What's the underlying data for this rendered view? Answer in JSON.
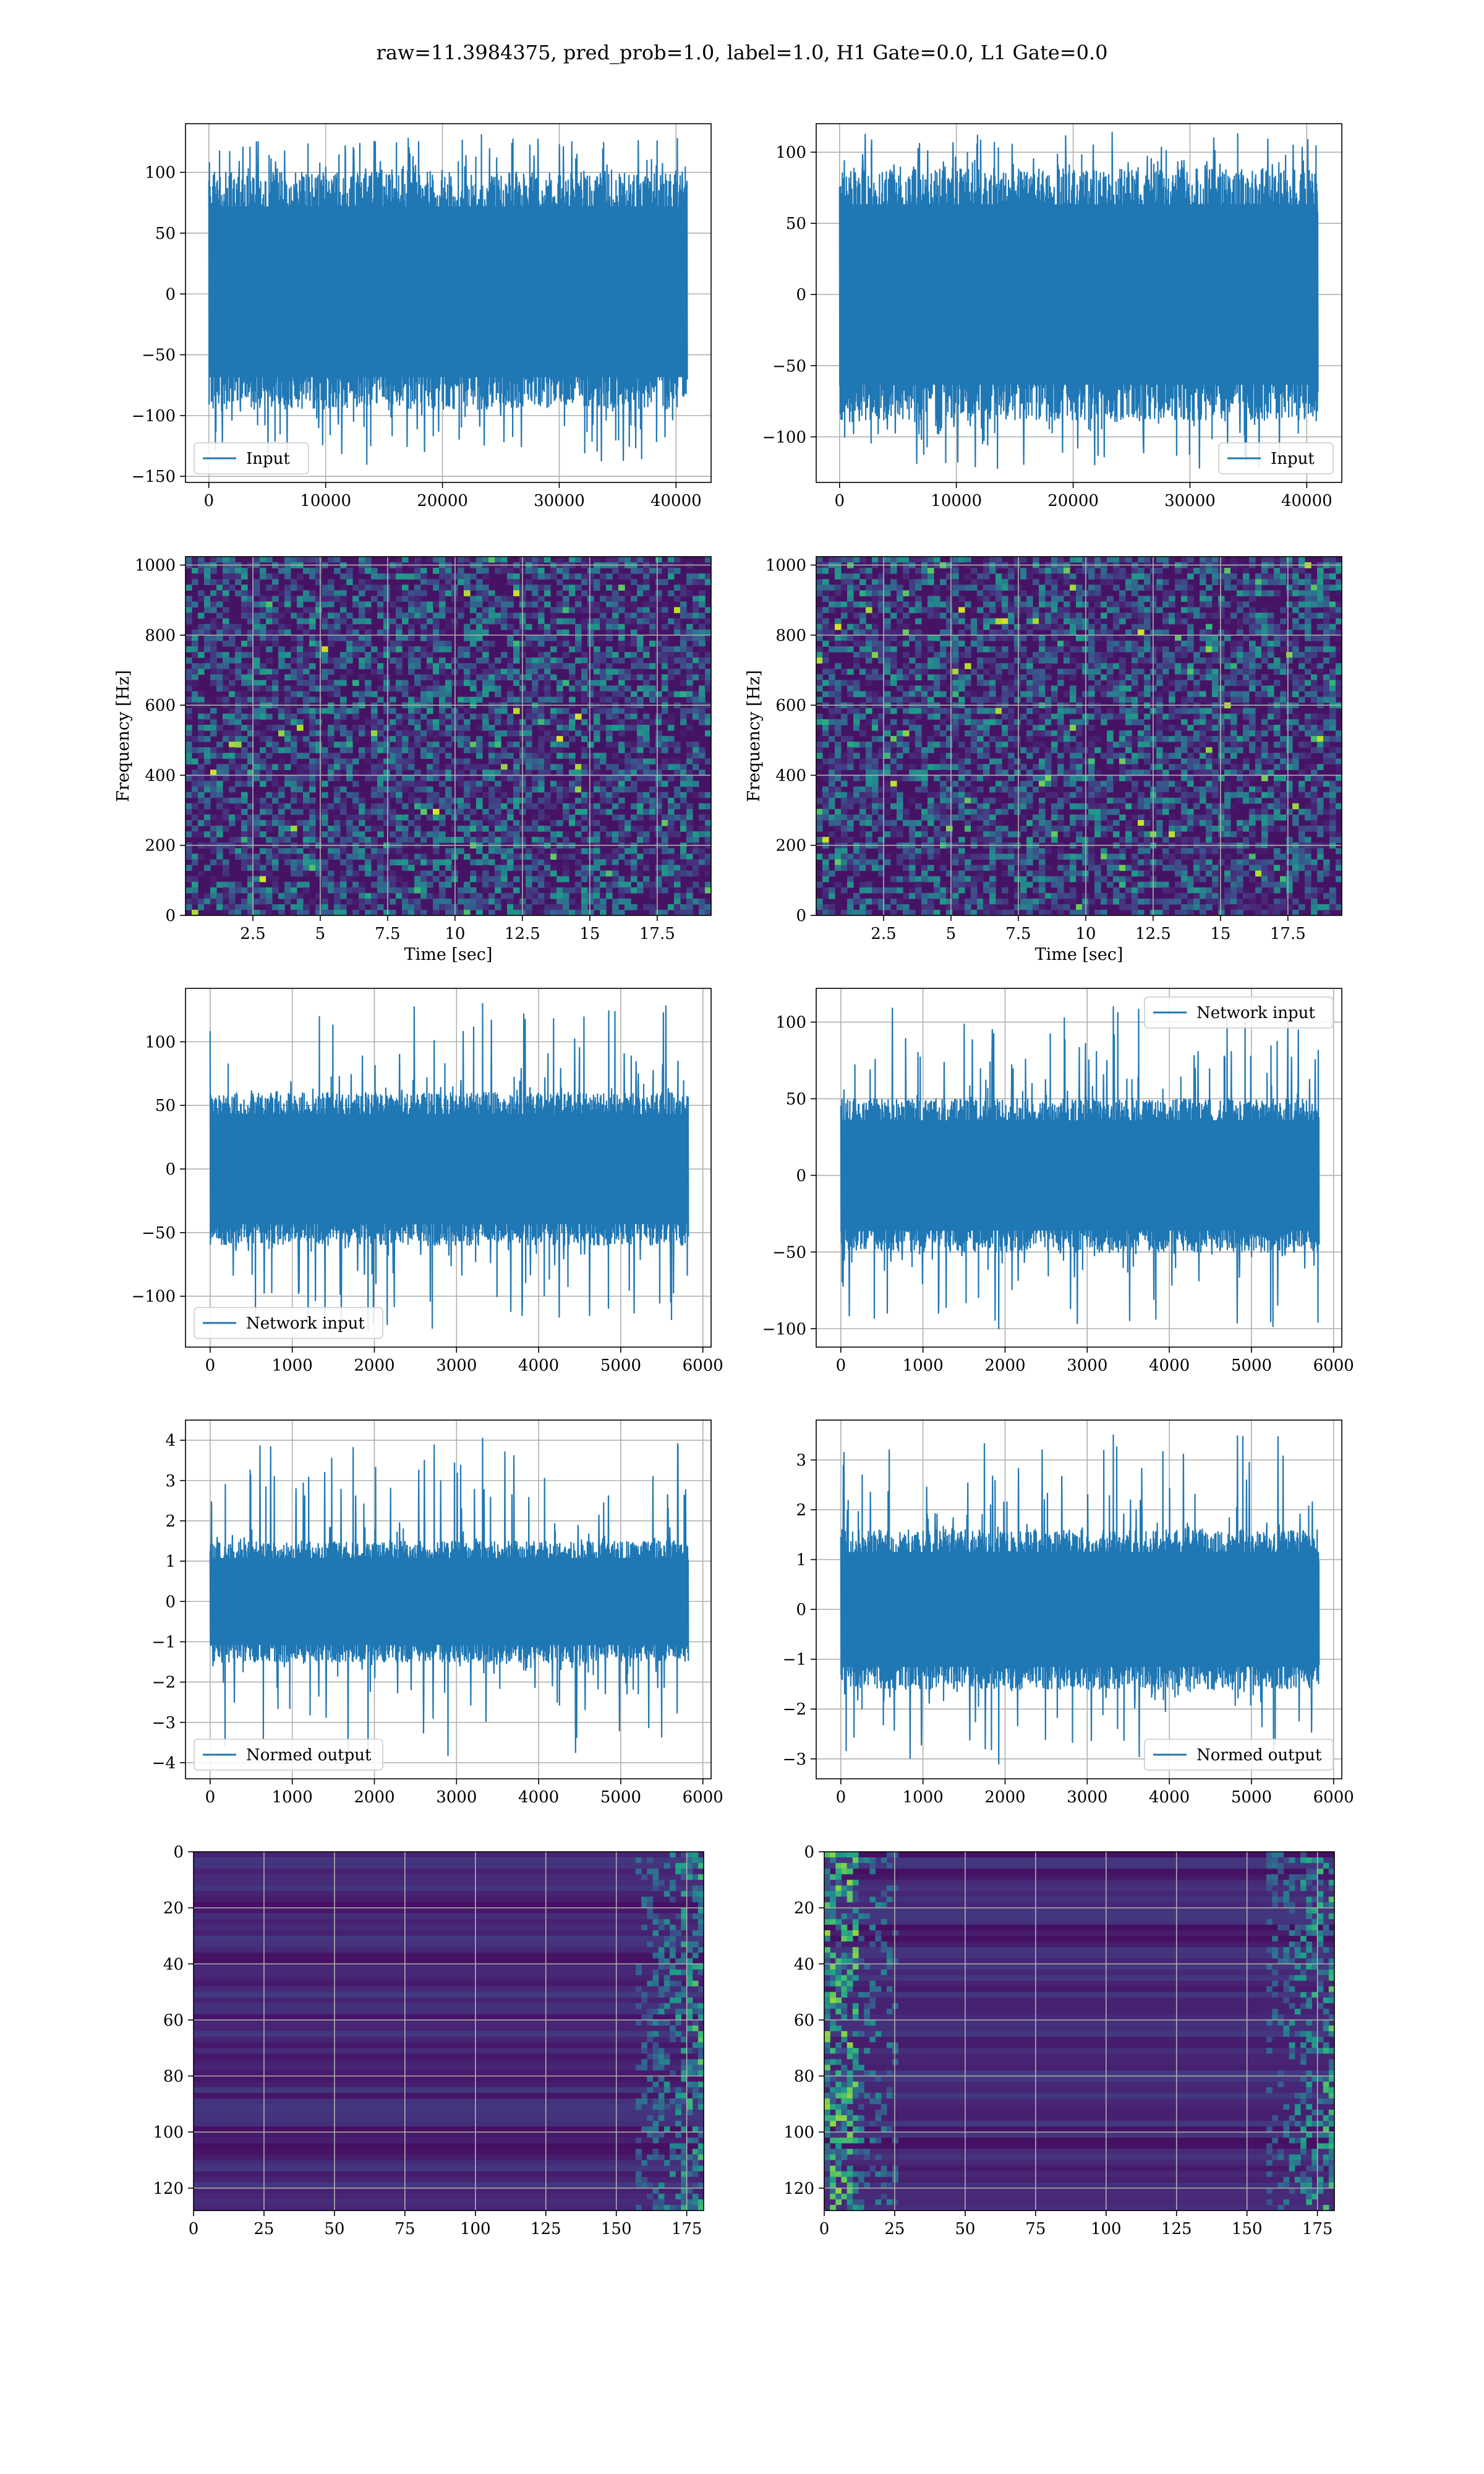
{
  "figure": {
    "suptitle": "raw=11.3984375, pred_prob=1.0, label=1.0, H1 Gate=0.0, L1 Gate=0.0",
    "line_color": "#1f77b4"
  },
  "chart_data": [
    {
      "type": "line",
      "panel": "row1-left",
      "series": [
        {
          "name": "Input",
          "approx_envelope_upper": 100,
          "approx_envelope_lower": -95
        }
      ],
      "x_range": [
        0,
        40960
      ],
      "xlim": [
        -2000,
        43000
      ],
      "ylim": [
        -155,
        140
      ],
      "xticks": [
        0,
        10000,
        20000,
        30000,
        40000
      ],
      "yticks": [
        -150,
        -100,
        -50,
        0,
        50,
        100
      ],
      "xlabel": "",
      "ylabel": "",
      "legend_loc": "lower left",
      "peak_max": 131,
      "peak_min": -140,
      "grid": true
    },
    {
      "type": "line",
      "panel": "row1-right",
      "series": [
        {
          "name": "Input",
          "approx_envelope_upper": 88,
          "approx_envelope_lower": -88
        }
      ],
      "x_range": [
        0,
        40960
      ],
      "xlim": [
        -2000,
        43000
      ],
      "ylim": [
        -132,
        120
      ],
      "xticks": [
        0,
        10000,
        20000,
        30000,
        40000
      ],
      "yticks": [
        -100,
        -50,
        0,
        50,
        100
      ],
      "xlabel": "",
      "ylabel": "",
      "legend_loc": "lower right",
      "peak_max": 114,
      "peak_min": -122,
      "grid": true
    },
    {
      "type": "heatmap",
      "panel": "row2-left",
      "xlim": [
        0,
        19.5
      ],
      "ylim": [
        0,
        1024
      ],
      "xticks": [
        2.5,
        5.0,
        7.5,
        10.0,
        12.5,
        15.0,
        17.5
      ],
      "yticks": [
        0,
        200,
        400,
        600,
        800,
        1000
      ],
      "xlabel": "Time [sec]",
      "ylabel": "Frequency [Hz]",
      "colormap": "viridis",
      "grid": true
    },
    {
      "type": "heatmap",
      "panel": "row2-right",
      "xlim": [
        0,
        19.5
      ],
      "ylim": [
        0,
        1024
      ],
      "xticks": [
        2.5,
        5.0,
        7.5,
        10.0,
        12.5,
        15.0,
        17.5
      ],
      "yticks": [
        0,
        200,
        400,
        600,
        800,
        1000
      ],
      "xlabel": "Time [sec]",
      "ylabel": "Frequency [Hz]",
      "colormap": "viridis",
      "grid": true
    },
    {
      "type": "line",
      "panel": "row3-left",
      "series": [
        {
          "name": "Network input",
          "approx_envelope_upper": 60,
          "approx_envelope_lower": -60
        }
      ],
      "x_range": [
        0,
        5824
      ],
      "xlim": [
        -300,
        6100
      ],
      "ylim": [
        -140,
        142
      ],
      "xticks": [
        0,
        1000,
        2000,
        3000,
        4000,
        5000,
        6000
      ],
      "yticks": [
        -100,
        -50,
        0,
        50,
        100
      ],
      "xlabel": "",
      "ylabel": "",
      "legend_loc": "lower left",
      "peak_max": 130,
      "peak_min": -127,
      "grid": true
    },
    {
      "type": "line",
      "panel": "row3-right",
      "series": [
        {
          "name": "Network input",
          "approx_envelope_upper": 50,
          "approx_envelope_lower": -50
        }
      ],
      "x_range": [
        0,
        5824
      ],
      "xlim": [
        -300,
        6100
      ],
      "ylim": [
        -112,
        122
      ],
      "xticks": [
        0,
        1000,
        2000,
        3000,
        4000,
        5000,
        6000
      ],
      "yticks": [
        -100,
        -50,
        0,
        50,
        100
      ],
      "xlabel": "",
      "ylabel": "",
      "legend_loc": "upper right",
      "peak_max": 110,
      "peak_min": -100,
      "grid": true
    },
    {
      "type": "line",
      "panel": "row4-left",
      "series": [
        {
          "name": "Normed output",
          "approx_envelope_upper": 1.5,
          "approx_envelope_lower": -1.5
        }
      ],
      "x_range": [
        0,
        5824
      ],
      "xlim": [
        -300,
        6100
      ],
      "ylim": [
        -4.4,
        4.5
      ],
      "xticks": [
        0,
        1000,
        2000,
        3000,
        4000,
        5000,
        6000
      ],
      "yticks": [
        -4,
        -3,
        -2,
        -1,
        0,
        1,
        2,
        3,
        4
      ],
      "xlabel": "",
      "ylabel": "",
      "legend_loc": "lower left",
      "peak_max": 4.05,
      "peak_min": -3.95,
      "grid": true
    },
    {
      "type": "line",
      "panel": "row4-right",
      "series": [
        {
          "name": "Normed output",
          "approx_envelope_upper": 1.6,
          "approx_envelope_lower": -1.6
        }
      ],
      "x_range": [
        0,
        5824
      ],
      "xlim": [
        -300,
        6100
      ],
      "ylim": [
        -3.4,
        3.8
      ],
      "xticks": [
        0,
        1000,
        2000,
        3000,
        4000,
        5000,
        6000
      ],
      "yticks": [
        -3,
        -2,
        -1,
        0,
        1,
        2,
        3
      ],
      "xlabel": "",
      "ylabel": "",
      "legend_loc": "lower right",
      "peak_max": 3.5,
      "peak_min": -3.1,
      "grid": true
    },
    {
      "type": "heatmap",
      "panel": "row5-left",
      "xlim": [
        0,
        181
      ],
      "ylim": [
        128,
        0
      ],
      "xticks": [
        0,
        25,
        50,
        75,
        100,
        125,
        150,
        175
      ],
      "yticks": [
        0,
        20,
        40,
        60,
        80,
        100,
        120
      ],
      "xlabel": "",
      "ylabel": "",
      "colormap": "viridis",
      "bright_region": "right",
      "grid": true
    },
    {
      "type": "heatmap",
      "panel": "row5-right",
      "xlim": [
        0,
        181
      ],
      "ylim": [
        128,
        0
      ],
      "xticks": [
        0,
        25,
        50,
        75,
        100,
        125,
        150,
        175
      ],
      "yticks": [
        0,
        20,
        40,
        60,
        80,
        100,
        120
      ],
      "xlabel": "",
      "ylabel": "",
      "colormap": "viridis",
      "bright_region": "left-and-right",
      "grid": true
    }
  ]
}
